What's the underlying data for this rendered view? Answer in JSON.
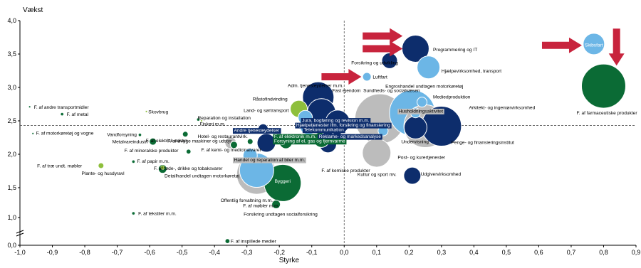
{
  "chart_data": {
    "type": "scatter",
    "title": "",
    "xlabel": "Styrke",
    "ylabel": "Vækst",
    "xlim": [
      -1.0,
      0.9
    ],
    "ylim": [
      0.0,
      4.0
    ],
    "x_ticks": [
      "-1,0",
      "-0,9",
      "-0,8",
      "-0,7",
      "-0,6",
      "-0,5",
      "-0,4",
      "-0,3",
      "-0,2",
      "-0,1",
      "0,0",
      "0,1",
      "0,2",
      "0,3",
      "0,4",
      "0,5",
      "0,6",
      "0,7",
      "0,8",
      "0,9"
    ],
    "y_ticks": [
      "0,0",
      "1,0",
      "1,5",
      "2,0",
      "2,5",
      "3,0",
      "3,5",
      "4,0"
    ],
    "axis_break": true,
    "reference_lines": {
      "x": 0.0,
      "y": 2.43
    },
    "grid": false,
    "legend": "none",
    "colors": {
      "dark_green": "#0b6b35",
      "light_green": "#8ebf3c",
      "navy": "#0d2d6c",
      "light_blue": "#6cb6e6",
      "grey": "#bcbcbc",
      "red_arrow": "#c8243d",
      "label_box_navy": "#0d2d6c",
      "label_box_green": "#0b6b35",
      "label_box_grey": "#bcbcbc"
    },
    "points": [
      {
        "label": "F. af andre transportmidler",
        "x": -0.97,
        "y": 2.71,
        "r": 1,
        "color": "dark_green"
      },
      {
        "label": "F. af metal",
        "x": -0.87,
        "y": 2.6,
        "r": 2,
        "color": "dark_green"
      },
      {
        "label": "F. af motorkøretøj og vogne",
        "x": -0.96,
        "y": 2.31,
        "r": 1,
        "color": "dark_green"
      },
      {
        "label": "Skovbrug",
        "x": -0.61,
        "y": 2.64,
        "r": 1,
        "color": "light_green"
      },
      {
        "label": "Vandforsyning",
        "x": -0.63,
        "y": 2.29,
        "r": 2,
        "color": "dark_green"
      },
      {
        "label": "Metalvareindustri",
        "x": -0.59,
        "y": 2.19,
        "r": 5,
        "color": "dark_green"
      },
      {
        "label": "F. af elektrisk udstyr",
        "x": -0.49,
        "y": 2.3,
        "r": 4,
        "color": "dark_green"
      },
      {
        "label": "F. af mineralske produkter",
        "x": -0.48,
        "y": 2.04,
        "r": 3,
        "color": "dark_green"
      },
      {
        "label": "F. af papir m.m.",
        "x": -0.65,
        "y": 1.89,
        "r": 2,
        "color": "dark_green"
      },
      {
        "label": "F. af træ undt. møbler",
        "x": -0.75,
        "y": 1.83,
        "r": 4,
        "color": "light_green"
      },
      {
        "label": "F. af føde-, drikke og tobaksvarer",
        "x": -0.56,
        "y": 1.78,
        "r": 6,
        "color": "dark_green"
      },
      {
        "label": "Plante- og husdyravl",
        "x": -0.56,
        "y": 1.8,
        "r": 3,
        "color": "light_green"
      },
      {
        "label": "Reparation og installation",
        "x": -0.45,
        "y": 2.52,
        "r": 2,
        "color": "dark_green"
      },
      {
        "label": "Fiskeri m.m.",
        "x": -0.44,
        "y": 2.5,
        "r": 1,
        "color": "light_green"
      },
      {
        "label": "Hotel- og restaurantvirk.",
        "x": -0.35,
        "y": 2.17,
        "r": 8,
        "color": "grey"
      },
      {
        "label": "F. af øvrige maskiner og udstyr",
        "x": -0.34,
        "y": 2.14,
        "r": 5,
        "color": "dark_green"
      },
      {
        "label": "F. af kemi- og medicinalvarer",
        "x": -0.29,
        "y": 2.19,
        "r": 4,
        "color": "dark_green"
      },
      {
        "label": "F. af tekstiler m.m.",
        "x": -0.65,
        "y": 1.07,
        "r": 2,
        "color": "dark_green"
      },
      {
        "label": "F. af inspillede medier",
        "x": -0.36,
        "y": 0.15,
        "r": 3,
        "color": "dark_green"
      },
      {
        "label": "Detailhandel undtagen motorkøretøj",
        "x": -0.27,
        "y": 1.7,
        "r": 28,
        "color": "grey"
      },
      {
        "label": "Detailhandel undtagen motorkøretøj",
        "x": -0.27,
        "y": 1.76,
        "r": 24,
        "color": "light_blue"
      },
      {
        "label": "Byggeri",
        "x": -0.19,
        "y": 1.57,
        "r": 26,
        "color": "dark_green"
      },
      {
        "label": "Offentlig forvaltning m.m.",
        "x": -0.29,
        "y": 1.98,
        "r": 10,
        "color": "light_blue"
      },
      {
        "label": "Forsikring undtagen socialforsikring",
        "x": -0.21,
        "y": 1.22,
        "r": 6,
        "color": "dark_green"
      },
      {
        "label": "F. af møbler m.m.",
        "x": -0.25,
        "y": 2.38,
        "r": 7,
        "color": "navy"
      },
      {
        "label": "Handel og reparation af biler m.m.",
        "x": -0.24,
        "y": 2.17,
        "r": 13,
        "color": "navy"
      },
      {
        "label": "Andre tjenesteydelser",
        "x": -0.19,
        "y": 2.22,
        "r": 7,
        "color": "navy"
      },
      {
        "label": "Forsyning af el, gas og fjernvarme",
        "x": -0.18,
        "y": 2.18,
        "r": 9,
        "color": "dark_green"
      },
      {
        "label": "Råstofindvinding",
        "x": -0.14,
        "y": 2.68,
        "r": 12,
        "color": "light_green"
      },
      {
        "label": "Land- og sørtransport",
        "x": -0.12,
        "y": 2.55,
        "r": 10,
        "color": "light_blue"
      },
      {
        "label": "Adm. tjenesteydelser m.m.",
        "x": -0.08,
        "y": 2.85,
        "r": 22,
        "color": "navy"
      },
      {
        "label": "Fast ejendom",
        "x": -0.07,
        "y": 2.62,
        "r": 20,
        "color": "navy"
      },
      {
        "label": "Jura, bogføring og revision m.m.",
        "x": -0.02,
        "y": 2.48,
        "r": 17,
        "color": "navy"
      },
      {
        "label": "Hjælpetjenester ifm. forsikring og finansiering",
        "x": -0.11,
        "y": 2.42,
        "r": 12,
        "color": "light_blue"
      },
      {
        "label": "Telekommunikation",
        "x": -0.04,
        "y": 2.32,
        "r": 14,
        "color": "navy"
      },
      {
        "label": "F. af elektronik m.m.",
        "x": -0.07,
        "y": 2.22,
        "r": 11,
        "color": "dark_green"
      },
      {
        "label": "Reklame- og markedsanalyse",
        "x": -0.05,
        "y": 2.27,
        "r": 8,
        "color": "navy"
      },
      {
        "label": "F. af kemiske produkter",
        "x": -0.05,
        "y": 2.15,
        "r": 12,
        "color": "navy"
      },
      {
        "label": "Sundheds- og socialvæsen",
        "x": 0.11,
        "y": 2.53,
        "r": 35,
        "color": "grey"
      },
      {
        "label": "Kultur og sport mv.",
        "x": 0.1,
        "y": 2.02,
        "r": 20,
        "color": "grey"
      },
      {
        "label": "Engroshandel undtagen motorkøretøj",
        "x": 0.21,
        "y": 2.62,
        "r": 32,
        "color": "light_blue"
      },
      {
        "label": "Mediedproduktion",
        "x": 0.24,
        "y": 2.78,
        "r": 7,
        "color": "light_blue"
      },
      {
        "label": "Husholdningsaktivitet",
        "x": 0.22,
        "y": 2.62,
        "r": 7,
        "color": "light_blue"
      },
      {
        "label": "Penge- og finansieringsinstitut",
        "x": 0.3,
        "y": 2.42,
        "r": 28,
        "color": "navy"
      },
      {
        "label": "Arkitekt- og ingeniørvirksomhed",
        "x": 0.25,
        "y": 2.42,
        "r": 30,
        "color": "grey"
      },
      {
        "label": "Undervisning",
        "x": 0.22,
        "y": 2.4,
        "r": 16,
        "color": "navy"
      },
      {
        "label": "Post- og kurertjenester",
        "x": 0.12,
        "y": 2.35,
        "r": 7,
        "color": "light_blue"
      },
      {
        "label": "Udgivervirksomhed",
        "x": 0.21,
        "y": 1.68,
        "r": 12,
        "color": "navy"
      },
      {
        "label": "Forsikring og udvikling",
        "x": 0.14,
        "y": 3.4,
        "r": 11,
        "color": "navy"
      },
      {
        "label": "Programmering og IT",
        "x": 0.22,
        "y": 3.58,
        "r": 19,
        "color": "navy"
      },
      {
        "label": "Hjælpevirksomhed, transport",
        "x": 0.26,
        "y": 3.3,
        "r": 16,
        "color": "light_blue"
      },
      {
        "label": "Luftfart",
        "x": 0.07,
        "y": 3.16,
        "r": 6,
        "color": "light_blue"
      },
      {
        "label": "Skibsfart",
        "x": 0.77,
        "y": 3.65,
        "r": 15,
        "color": "light_blue"
      },
      {
        "label": "F. af farmaceutiske produkter",
        "x": 0.8,
        "y": 3.02,
        "r": 31,
        "color": "dark_green"
      }
    ],
    "labels": [
      {
        "text": "F. af andre transportmidler",
        "x": -0.957,
        "y": 2.71,
        "anchor": "start",
        "box": ""
      },
      {
        "text": "F. af metal",
        "x": -0.856,
        "y": 2.6,
        "anchor": "start",
        "box": ""
      },
      {
        "text": "F. af motorkøretøj og vogne",
        "x": -0.95,
        "y": 2.32,
        "anchor": "start",
        "box": ""
      },
      {
        "text": "Skovbrug",
        "x": -0.604,
        "y": 2.64,
        "anchor": "start",
        "box": ""
      },
      {
        "text": "Vandforsyning",
        "x": -0.64,
        "y": 2.3,
        "anchor": "end",
        "box": ""
      },
      {
        "text": "Metalvareindustri",
        "x": -0.605,
        "y": 2.19,
        "anchor": "end",
        "box": ""
      },
      {
        "text": "F. af elektrisk udstyr",
        "x": -0.612,
        "y": 2.21,
        "anchor": "start",
        "box": ""
      },
      {
        "text": "F. af mineralske produkter",
        "x": -0.678,
        "y": 2.06,
        "anchor": "start",
        "box": ""
      },
      {
        "text": "F. af papir m.m.",
        "x": -0.639,
        "y": 1.9,
        "anchor": "start",
        "box": ""
      },
      {
        "text": "F. af træ undt. møbler",
        "x": -0.947,
        "y": 1.83,
        "anchor": "start",
        "box": ""
      },
      {
        "text": "Plante- og husdyravl",
        "x": -0.81,
        "y": 1.72,
        "anchor": "start",
        "box": ""
      },
      {
        "text": "F. af føde-, drikke og tobaksvarer",
        "x": -0.587,
        "y": 1.79,
        "anchor": "start",
        "box": ""
      },
      {
        "text": "Reparation og installation",
        "x": -0.452,
        "y": 2.55,
        "anchor": "start",
        "box": ""
      },
      {
        "text": "Fiskeri m.m.",
        "x": -0.445,
        "y": 2.46,
        "anchor": "start",
        "box": ""
      },
      {
        "text": "Hotel- og restaurantvirk.",
        "x": -0.452,
        "y": 2.27,
        "anchor": "start",
        "box": ""
      },
      {
        "text": "F. af øvrige maskiner og udstyr",
        "x": -0.545,
        "y": 2.2,
        "anchor": "start",
        "box": ""
      },
      {
        "text": "F. af kemi- og medicinalvarer",
        "x": -0.441,
        "y": 2.07,
        "anchor": "start",
        "box": ""
      },
      {
        "text": "Detailhandel undtagen motorkøretøj",
        "x": -0.554,
        "y": 1.68,
        "anchor": "start",
        "box": ""
      },
      {
        "text": "Byggeri",
        "x": -0.19,
        "y": 1.6,
        "anchor": "middle",
        "box": "",
        "fill": "#ffffff"
      },
      {
        "text": "Offentlig forvaltning m.m.",
        "x": -0.381,
        "y": 1.29,
        "anchor": "start",
        "box": ""
      },
      {
        "text": "F. af møbler m.m.",
        "x": -0.312,
        "y": 1.2,
        "anchor": "start",
        "box": ""
      },
      {
        "text": "Forsikring undtagen socialforsikring",
        "x": -0.31,
        "y": 1.06,
        "anchor": "start",
        "box": ""
      },
      {
        "text": "F. af tekstiler m.m.",
        "x": -0.635,
        "y": 1.07,
        "anchor": "start",
        "box": ""
      },
      {
        "text": "F. af inspillede medier",
        "x": -0.35,
        "y": 0.15,
        "anchor": "start",
        "box": ""
      },
      {
        "text": "Råstofindvinding",
        "x": -0.282,
        "y": 2.83,
        "anchor": "start",
        "box": ""
      },
      {
        "text": "Land- og sørtransport",
        "x": -0.31,
        "y": 2.66,
        "anchor": "start",
        "box": ""
      },
      {
        "text": "Adm. tjenesteydelser m.m.",
        "x": -0.174,
        "y": 3.03,
        "anchor": "start",
        "box": ""
      },
      {
        "text": "Fast ejendom",
        "x": -0.037,
        "y": 2.96,
        "anchor": "start",
        "box": ""
      },
      {
        "text": "Sundheds- og socialvæsen",
        "x": 0.059,
        "y": 2.96,
        "anchor": "start",
        "box": ""
      },
      {
        "text": "Engroshandel undtagen motorkøretøj",
        "x": 0.127,
        "y": 3.02,
        "anchor": "start",
        "box": ""
      },
      {
        "text": "Andre tjenesteydelser",
        "x": -0.34,
        "y": 2.36,
        "anchor": "start",
        "box": "navy"
      },
      {
        "text": "Jura, bogføring og revision m.m.",
        "x": -0.13,
        "y": 2.51,
        "anchor": "start",
        "box": "navy"
      },
      {
        "text": "Hjælpetjenester ifm. forsikring og finansiering",
        "x": -0.148,
        "y": 2.44,
        "anchor": "start",
        "box": "navy"
      },
      {
        "text": "Telekommunikation",
        "x": -0.125,
        "y": 2.37,
        "anchor": "start",
        "box": "navy"
      },
      {
        "text": "F. af elektronik m.m.",
        "x": -0.216,
        "y": 2.27,
        "anchor": "start",
        "box": "green"
      },
      {
        "text": "Reklame- og markedsanalyse",
        "x": -0.078,
        "y": 2.27,
        "anchor": "start",
        "box": "navy"
      },
      {
        "text": "Forsyning af el, gas og fjernvarme",
        "x": -0.216,
        "y": 2.2,
        "anchor": "start",
        "box": "green"
      },
      {
        "text": "Handel og reparation af biler m.m.",
        "x": -0.34,
        "y": 1.92,
        "anchor": "start",
        "box": "grey"
      },
      {
        "text": "Husholdningsaktivitet",
        "x": 0.168,
        "y": 2.65,
        "anchor": "start",
        "box": "grey"
      },
      {
        "text": "Mediedproduktion",
        "x": 0.274,
        "y": 2.86,
        "anchor": "start",
        "box": ""
      },
      {
        "text": "Arkitekt- og ingeniørvirksomhed",
        "x": 0.385,
        "y": 2.7,
        "anchor": "start",
        "box": ""
      },
      {
        "text": "Penge- og finansieringsinstitut",
        "x": 0.33,
        "y": 2.18,
        "anchor": "start",
        "box": ""
      },
      {
        "text": "Undervisning",
        "x": 0.176,
        "y": 2.19,
        "anchor": "start",
        "box": ""
      },
      {
        "text": "Post- og kurertjenester",
        "x": 0.165,
        "y": 1.96,
        "anchor": "start",
        "box": ""
      },
      {
        "text": "Kultur og sport mv.",
        "x": 0.041,
        "y": 1.7,
        "anchor": "start",
        "box": ""
      },
      {
        "text": "Udgivervirksomhed",
        "x": 0.236,
        "y": 1.71,
        "anchor": "start",
        "box": ""
      },
      {
        "text": "F. af kemiske produkter",
        "x": -0.07,
        "y": 1.76,
        "anchor": "start",
        "box": ""
      },
      {
        "text": "Forsikring og udvikling",
        "x": 0.022,
        "y": 3.37,
        "anchor": "start",
        "box": ""
      },
      {
        "text": "Programmering og IT",
        "x": 0.274,
        "y": 3.57,
        "anchor": "start",
        "box": ""
      },
      {
        "text": "Hjælpevirksomhed, transport",
        "x": 0.3,
        "y": 3.25,
        "anchor": "start",
        "box": ""
      },
      {
        "text": "Luftfart",
        "x": 0.088,
        "y": 3.16,
        "anchor": "start",
        "box": ""
      },
      {
        "text": "Skibsfart",
        "x": 0.77,
        "y": 3.64,
        "anchor": "middle",
        "box": "",
        "fill": "#ffffff"
      },
      {
        "text": "F. af farmaceutiske produkter",
        "x": 0.81,
        "y": 2.62,
        "anchor": "middle",
        "box": ""
      }
    ],
    "arrows": [
      {
        "dir": "right",
        "x": 0.057,
        "y": 3.77
      },
      {
        "dir": "right",
        "x": 0.057,
        "y": 3.58
      },
      {
        "dir": "right",
        "x": -0.07,
        "y": 3.16
      },
      {
        "dir": "right",
        "x": 0.61,
        "y": 3.63
      },
      {
        "dir": "down",
        "x": 0.84,
        "y": 3.88
      }
    ]
  }
}
